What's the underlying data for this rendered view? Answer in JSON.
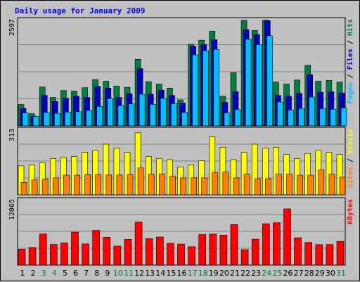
{
  "chart_data": {
    "type": "bar",
    "title": "Daily usage for January 2009",
    "title_color": "#0000ff",
    "categories": [
      "1",
      "2",
      "3",
      "4",
      "5",
      "6",
      "7",
      "8",
      "9",
      "10",
      "11",
      "12",
      "13",
      "14",
      "15",
      "16",
      "17",
      "18",
      "19",
      "20",
      "21",
      "22",
      "23",
      "24",
      "25",
      "26",
      "27",
      "28",
      "29",
      "30",
      "31"
    ],
    "weekend_days": [
      "3",
      "4",
      "10",
      "11",
      "17",
      "18",
      "24",
      "25",
      "31"
    ],
    "weekday_label_color": "#000000",
    "weekend_label_color": "#008040",
    "panels": [
      {
        "id": "hits-files-pages",
        "max_label": "2597",
        "ymax": 2597,
        "legend": [
          {
            "text": "Pages",
            "color": "#00c0ff"
          },
          {
            "text": " / ",
            "color": "#000000"
          },
          {
            "text": "Files",
            "color": "#0000c0"
          },
          {
            "text": " / ",
            "color": "#000000"
          },
          {
            "text": "Hits",
            "color": "#008040"
          }
        ],
        "series": [
          {
            "key": "hits",
            "color": "#008040",
            "values": [
              530,
              300,
              960,
              700,
              870,
              860,
              940,
              1140,
              1100,
              980,
              950,
              1640,
              1090,
              1030,
              930,
              640,
              2010,
              2110,
              2330,
              730,
              1310,
              2600,
              2350,
              2600,
              1080,
              1030,
              1130,
              1490,
              1100,
              1120,
              1080
            ]
          },
          {
            "key": "files",
            "color": "#0000c0",
            "values": [
              430,
              240,
              750,
              600,
              680,
              730,
              700,
              970,
              930,
              700,
              790,
              1410,
              780,
              880,
              750,
              560,
              1960,
              2000,
              2120,
              580,
              840,
              2370,
              2250,
              2590,
              750,
              730,
              800,
              1260,
              830,
              840,
              810
            ]
          },
          {
            "key": "pages",
            "color": "#00c0ff",
            "values": [
              320,
              230,
              330,
              310,
              340,
              350,
              380,
              480,
              670,
              500,
              540,
              780,
              530,
              680,
              550,
              330,
              1750,
              1850,
              1880,
              320,
              400,
              2130,
              2000,
              2220,
              590,
              390,
              430,
              710,
              420,
              410,
              440
            ]
          }
        ]
      },
      {
        "id": "visits-sites",
        "max_label": "313",
        "ymax": 313,
        "legend": [
          {
            "text": "Sites",
            "color": "#ff8000"
          },
          {
            "text": " / ",
            "color": "#000000"
          },
          {
            "text": "Visits",
            "color": "#ffff00"
          }
        ],
        "series": [
          {
            "key": "visits",
            "color": "#ffff00",
            "values": [
              140,
              145,
              155,
              175,
              180,
              185,
              205,
              215,
              245,
              225,
              205,
              300,
              185,
              175,
              170,
              135,
              145,
              165,
              280,
              230,
              170,
              205,
              245,
              225,
              230,
              195,
              175,
              200,
              215,
              205,
              195
            ]
          },
          {
            "key": "sites",
            "color": "#ff8000",
            "values": [
              60,
              72,
              75,
              82,
              95,
              95,
              97,
              98,
              96,
              96,
              98,
              130,
              100,
              101,
              90,
              82,
              82,
              82,
              108,
              110,
              82,
              100,
              78,
              78,
              100,
              100,
              95,
              95,
              120,
              100,
              85
            ]
          }
        ]
      },
      {
        "id": "kbytes",
        "max_label": "12065",
        "ymax": 12065,
        "legend": [
          {
            "text": "KBytes",
            "color": "#ff0000"
          }
        ],
        "series": [
          {
            "key": "kbytes",
            "color": "#ff0000",
            "values": [
              2960,
              3290,
              5810,
              3860,
              4150,
              6150,
              3950,
              6480,
              5200,
              3550,
              4800,
              8030,
              4950,
              5240,
              4070,
              3920,
              3430,
              5700,
              5780,
              5590,
              7580,
              2880,
              4840,
              7720,
              7900,
              10490,
              5100,
              4220,
              3820,
              3840,
              4440
            ]
          }
        ]
      }
    ]
  }
}
